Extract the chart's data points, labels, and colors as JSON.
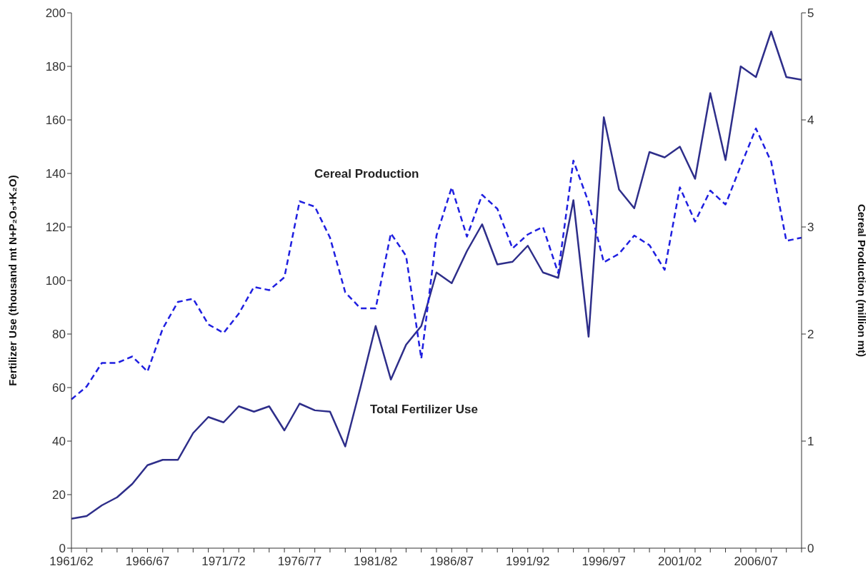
{
  "chart_data": {
    "type": "line",
    "xlabel": null,
    "ylabel": "Fertilizer Use (thousand mt N+P₂O₅+K₂O)",
    "y2label": "Cereal Production (million mt)",
    "categories": [
      "1961/62",
      null,
      null,
      null,
      null,
      "1966/67",
      null,
      null,
      null,
      null,
      "1971/72",
      null,
      null,
      null,
      null,
      "1976/77",
      null,
      null,
      null,
      null,
      "1981/82",
      null,
      null,
      null,
      null,
      "1986/87",
      null,
      null,
      null,
      null,
      "1991/92",
      null,
      null,
      null,
      null,
      "1996/97",
      null,
      null,
      null,
      null,
      "2001/02",
      null,
      null,
      null,
      null,
      "2006/07",
      null,
      null,
      null
    ],
    "series": [
      {
        "name": "Total Fertilizer Use",
        "color": "#2e2e8a",
        "line_style": "solid",
        "values": [
          11,
          12,
          16,
          19,
          24,
          31,
          33,
          33,
          43,
          49,
          47,
          53,
          51,
          53,
          44,
          54,
          51.5,
          51,
          38,
          60,
          83,
          63,
          76,
          83,
          103,
          99,
          111,
          121,
          106,
          107,
          113,
          103,
          101,
          130,
          79,
          161,
          134,
          127,
          148,
          146,
          150,
          138,
          170,
          145,
          180,
          176,
          193,
          176,
          175
        ]
      },
      {
        "name": "Cereal Production",
        "color": "#1f1fe0",
        "line_style": "dashed",
        "axis": "y2",
        "values": [
          1.39,
          1.51,
          1.73,
          1.73,
          1.79,
          1.65,
          2.05,
          2.3,
          2.33,
          2.09,
          2.01,
          2.19,
          2.44,
          2.41,
          2.53,
          3.24,
          3.19,
          2.9,
          2.39,
          2.24,
          2.24,
          2.94,
          2.73,
          1.77,
          2.92,
          3.37,
          2.91,
          3.3,
          3.17,
          2.8,
          2.93,
          3.0,
          2.57,
          3.62,
          3.23,
          2.67,
          2.75,
          2.92,
          2.83,
          2.6,
          3.37,
          3.05,
          3.34,
          3.21,
          3.57,
          3.92,
          3.61,
          2.87,
          2.9
        ]
      }
    ],
    "ylim": [
      0,
      200
    ],
    "yticks": [
      0,
      20,
      40,
      60,
      80,
      100,
      120,
      140,
      160,
      180,
      200
    ],
    "y2lim": [
      0,
      5
    ],
    "y2ticks": [
      0,
      1,
      2,
      3,
      4,
      5
    ],
    "marker": "none"
  }
}
